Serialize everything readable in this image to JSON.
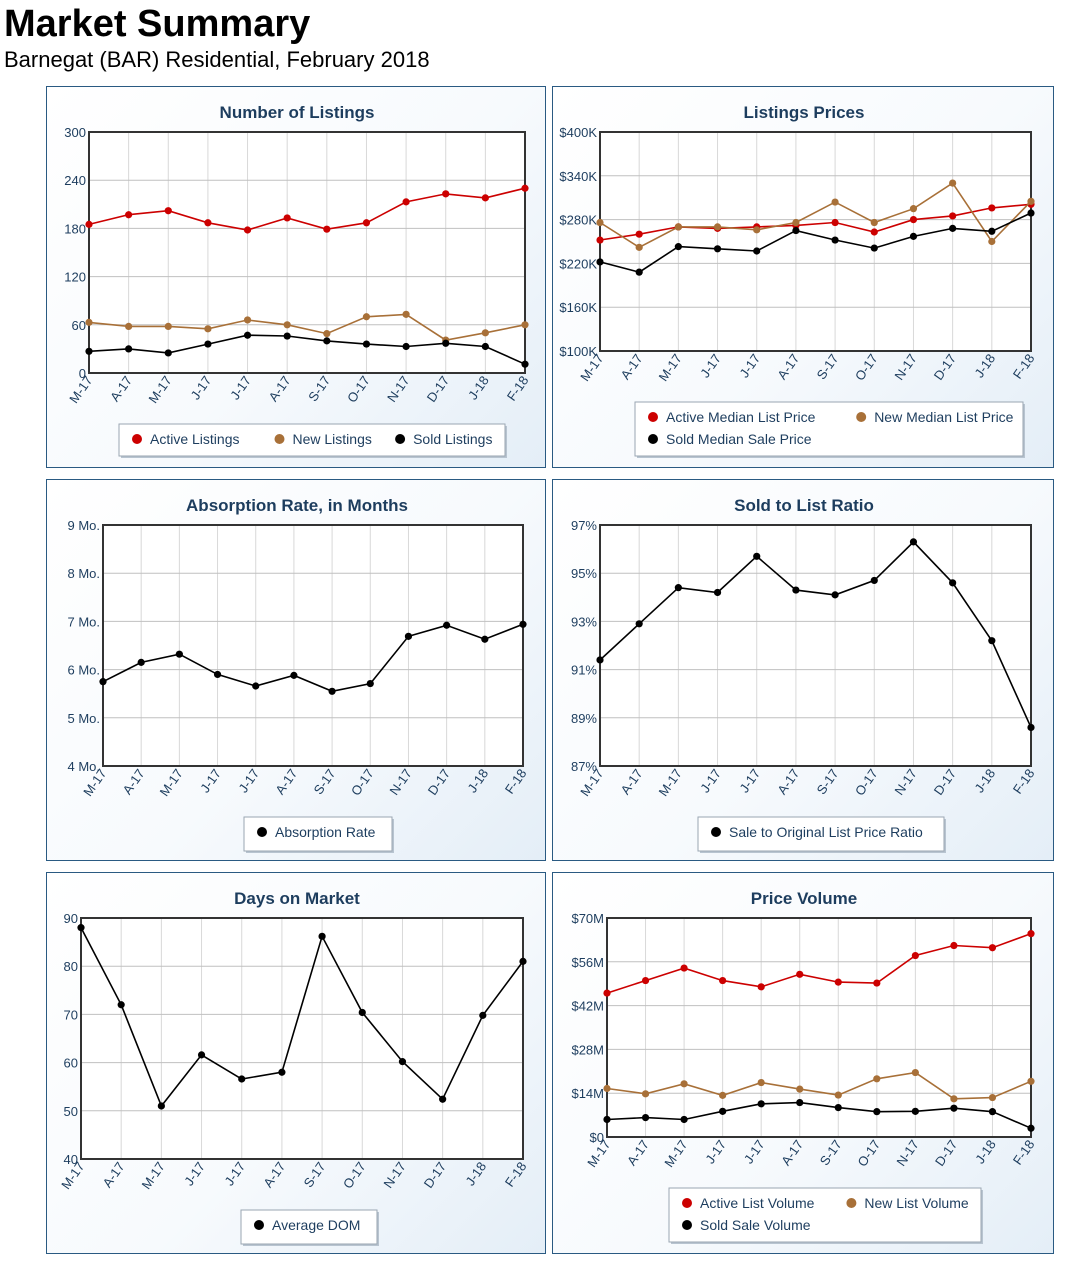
{
  "header": {
    "title": "Market Summary",
    "subtitle": "Barnegat (BAR) Residential, February 2018"
  },
  "colors": {
    "red": "#cc0000",
    "brown": "#a87038",
    "black": "#000000",
    "title": "#1d3d5e"
  },
  "chart_data": [
    {
      "type": "line",
      "title": "Number of Listings",
      "categories": [
        "M-17",
        "A-17",
        "M-17",
        "J-17",
        "J-17",
        "A-17",
        "S-17",
        "O-17",
        "N-17",
        "D-17",
        "J-18",
        "F-18"
      ],
      "ylim": [
        0,
        300
      ],
      "yticks": [
        "0",
        "60",
        "120",
        "180",
        "240",
        "300"
      ],
      "legend": [
        "Active Listings",
        "New Listings",
        "Sold Listings"
      ],
      "series": [
        {
          "name": "Active Listings",
          "color": "red",
          "values": [
            185,
            197,
            202,
            187,
            178,
            193,
            179,
            187,
            213,
            223,
            218,
            230
          ]
        },
        {
          "name": "New Listings",
          "color": "brown",
          "values": [
            63,
            58,
            58,
            55,
            66,
            60,
            49,
            70,
            73,
            41,
            50,
            60
          ]
        },
        {
          "name": "Sold Listings",
          "color": "black",
          "values": [
            27,
            30,
            25,
            36,
            47,
            46,
            40,
            36,
            33,
            37,
            33,
            11
          ]
        }
      ]
    },
    {
      "type": "line",
      "title": "Listings Prices",
      "categories": [
        "M-17",
        "A-17",
        "M-17",
        "J-17",
        "J-17",
        "A-17",
        "S-17",
        "O-17",
        "N-17",
        "D-17",
        "J-18",
        "F-18"
      ],
      "ylim": [
        100000,
        400000
      ],
      "yticks": [
        "$100K",
        "$160K",
        "$220K",
        "$280K",
        "$340K",
        "$400K"
      ],
      "legend": [
        "Active Median List Price",
        "New Median List Price",
        "Sold Median Sale Price"
      ],
      "series": [
        {
          "name": "Active Median List Price",
          "color": "red",
          "values": [
            252000,
            260000,
            270000,
            268000,
            270000,
            272000,
            276000,
            263000,
            280000,
            285000,
            296000,
            301000
          ]
        },
        {
          "name": "New Median List Price",
          "color": "brown",
          "values": [
            276000,
            242000,
            270000,
            270000,
            266000,
            276000,
            304000,
            276000,
            295000,
            330000,
            250000,
            305000
          ]
        },
        {
          "name": "Sold Median Sale Price",
          "color": "black",
          "values": [
            222000,
            208000,
            243000,
            240000,
            237000,
            265000,
            252000,
            241000,
            257000,
            268000,
            264000,
            289000
          ]
        }
      ]
    },
    {
      "type": "line",
      "title": "Absorption Rate, in Months",
      "categories": [
        "M-17",
        "A-17",
        "M-17",
        "J-17",
        "J-17",
        "A-17",
        "S-17",
        "O-17",
        "N-17",
        "D-17",
        "J-18",
        "F-18"
      ],
      "ylim": [
        4,
        9
      ],
      "yticks": [
        "4 Mo.",
        "5 Mo.",
        "6 Mo.",
        "7 Mo.",
        "8 Mo.",
        "9 Mo."
      ],
      "legend": [
        "Absorption Rate"
      ],
      "series": [
        {
          "name": "Absorption Rate",
          "color": "black",
          "values": [
            5.75,
            6.15,
            6.32,
            5.9,
            5.66,
            5.88,
            5.55,
            5.71,
            6.69,
            6.92,
            6.63,
            6.94
          ]
        }
      ]
    },
    {
      "type": "line",
      "title": "Sold to List Ratio",
      "categories": [
        "M-17",
        "A-17",
        "M-17",
        "J-17",
        "J-17",
        "A-17",
        "S-17",
        "O-17",
        "N-17",
        "D-17",
        "J-18",
        "F-18"
      ],
      "ylim": [
        87,
        97
      ],
      "yticks": [
        "87%",
        "89%",
        "91%",
        "93%",
        "95%",
        "97%"
      ],
      "legend": [
        "Sale to Original List Price Ratio"
      ],
      "series": [
        {
          "name": "Sale to Original List Price Ratio",
          "color": "black",
          "values": [
            91.4,
            92.9,
            94.4,
            94.2,
            95.7,
            94.3,
            94.1,
            94.7,
            96.3,
            94.6,
            92.2,
            88.6
          ]
        }
      ]
    },
    {
      "type": "line",
      "title": "Days on Market",
      "categories": [
        "M-17",
        "A-17",
        "M-17",
        "J-17",
        "J-17",
        "A-17",
        "S-17",
        "O-17",
        "N-17",
        "D-17",
        "J-18",
        "F-18"
      ],
      "ylim": [
        40,
        90
      ],
      "yticks": [
        "40",
        "50",
        "60",
        "70",
        "80",
        "90"
      ],
      "legend": [
        "Average DOM"
      ],
      "series": [
        {
          "name": "Average DOM",
          "color": "black",
          "values": [
            88,
            72,
            51,
            61.6,
            56.6,
            58,
            86.2,
            70.4,
            60.2,
            52.4,
            69.8,
            81
          ]
        }
      ]
    },
    {
      "type": "line",
      "title": "Price Volume",
      "categories": [
        "M-17",
        "A-17",
        "M-17",
        "J-17",
        "J-17",
        "A-17",
        "S-17",
        "O-17",
        "N-17",
        "D-17",
        "J-18",
        "F-18"
      ],
      "ylim": [
        0,
        70
      ],
      "yticks": [
        "$0",
        "$14M",
        "$28M",
        "$42M",
        "$56M",
        "$70M"
      ],
      "legend": [
        "Active List Volume",
        "New List Volume",
        "Sold Sale Volume"
      ],
      "series": [
        {
          "name": "Active List Volume",
          "color": "red",
          "values": [
            46,
            50,
            54,
            50,
            48,
            52,
            49.5,
            49.2,
            58,
            61.2,
            60.5,
            65
          ]
        },
        {
          "name": "New List Volume",
          "color": "brown",
          "values": [
            15.5,
            13.8,
            17,
            13.3,
            17.4,
            15.3,
            13.4,
            18.6,
            20.6,
            12.2,
            12.6,
            17.8
          ]
        },
        {
          "name": "Sold Sale Volume",
          "color": "black",
          "values": [
            5.6,
            6.2,
            5.6,
            8.2,
            10.6,
            11,
            9.4,
            8.1,
            8.2,
            9.2,
            8.1,
            2.8
          ]
        }
      ]
    }
  ]
}
